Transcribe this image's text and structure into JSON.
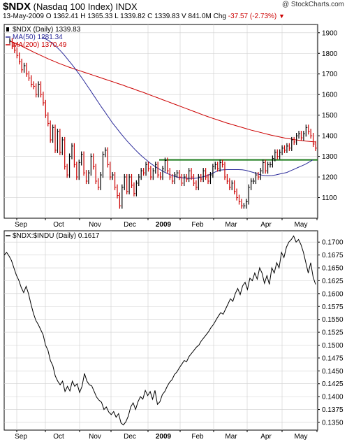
{
  "header": {
    "symbol": "$NDX",
    "name": "(Nasdaq 100 Index)",
    "exchange": "INDX",
    "credit": "@ StockCharts.com",
    "date": "13-May-2009",
    "open_label": "O",
    "open": "1362.41",
    "high_label": "H",
    "high": "1365.33",
    "low_label": "L",
    "low": "1339.82",
    "close_label": "C",
    "close": "1339.83",
    "volume_label": "V",
    "volume": "841.0M",
    "change_label": "Chg",
    "change": "-37.57 (-2.73%)",
    "change_color": "#cc0000"
  },
  "chart_data": [
    {
      "type": "line",
      "panel": "price",
      "legend": [
        {
          "label": "$NDX (Daily) 1339.83",
          "color": "#000000",
          "marker": "bar"
        },
        {
          "label": "MA(50) 1281.34",
          "color": "#2b2b9a"
        },
        {
          "label": "MA(200) 1370.49",
          "color": "#cc0000"
        }
      ],
      "yticks": [
        1100,
        1200,
        1300,
        1400,
        1500,
        1600,
        1700,
        1800,
        1900
      ],
      "xticks": [
        "Sep",
        "Oct",
        "Nov",
        "Dec",
        "2009",
        "Feb",
        "Mar",
        "Apr",
        "May"
      ],
      "ylim": [
        1000,
        1940
      ],
      "up_color": "#000000",
      "down_color": "#cc0000",
      "support_level": 1283,
      "support_color": "#1a7a1a",
      "price": [
        1860,
        1835,
        1815,
        1790,
        1760,
        1720,
        1740,
        1700,
        1680,
        1650,
        1640,
        1600,
        1650,
        1600,
        1560,
        1500,
        1460,
        1380,
        1440,
        1330,
        1420,
        1320,
        1380,
        1250,
        1210,
        1300,
        1350,
        1260,
        1200,
        1270,
        1310,
        1220,
        1180,
        1220,
        1300,
        1250,
        1180,
        1150,
        1210,
        1310,
        1330,
        1260,
        1200,
        1210,
        1150,
        1110,
        1060,
        1150,
        1200,
        1130,
        1200,
        1160,
        1120,
        1170,
        1200,
        1230,
        1220,
        1260,
        1240,
        1200,
        1230,
        1260,
        1210,
        1200,
        1240,
        1280,
        1230,
        1200,
        1180,
        1210,
        1220,
        1200,
        1170,
        1200,
        1190,
        1230,
        1200,
        1170,
        1150,
        1200,
        1190,
        1230,
        1200,
        1180,
        1210,
        1250,
        1260,
        1240,
        1270,
        1260,
        1200,
        1180,
        1150,
        1170,
        1130,
        1100,
        1080,
        1060,
        1060,
        1080,
        1150,
        1180,
        1180,
        1210,
        1200,
        1230,
        1270,
        1230,
        1260,
        1260,
        1290,
        1320,
        1300,
        1320,
        1340,
        1330,
        1350,
        1340,
        1380,
        1370,
        1400,
        1410,
        1390,
        1410,
        1440,
        1420,
        1400,
        1360,
        1340
      ],
      "ma50": [
        1880,
        1870,
        1860,
        1845,
        1830,
        1812,
        1792,
        1770,
        1748,
        1725,
        1700,
        1675,
        1648,
        1622,
        1595,
        1568,
        1541,
        1515,
        1489,
        1463,
        1440,
        1417,
        1395,
        1374,
        1354,
        1335,
        1317,
        1300,
        1285,
        1270,
        1257,
        1245,
        1234,
        1224,
        1215,
        1208,
        1202,
        1198,
        1196,
        1194,
        1193,
        1193,
        1195,
        1199,
        1204,
        1210,
        1218,
        1227,
        1233,
        1235,
        1236,
        1236,
        1236,
        1236,
        1235,
        1232,
        1227,
        1222,
        1216,
        1210,
        1207,
        1206,
        1207,
        1210,
        1214,
        1218,
        1222,
        1230,
        1238,
        1246,
        1254,
        1262,
        1272,
        1283
      ],
      "ma200": [
        1860,
        1850,
        1840,
        1828,
        1816,
        1804,
        1793,
        1782,
        1771,
        1761,
        1751,
        1742,
        1733,
        1725,
        1717,
        1709,
        1701,
        1693,
        1685,
        1677,
        1669,
        1661,
        1653,
        1645,
        1636,
        1628,
        1619,
        1611,
        1602,
        1593,
        1584,
        1575,
        1566,
        1557,
        1548,
        1539,
        1530,
        1521,
        1512,
        1503,
        1494,
        1486,
        1478,
        1470,
        1462,
        1455,
        1448,
        1441,
        1434,
        1427,
        1421,
        1415,
        1409,
        1403,
        1398,
        1393,
        1388,
        1384,
        1380,
        1377,
        1374,
        1372,
        1370
      ]
    },
    {
      "type": "line",
      "panel": "ratio",
      "legend": [
        {
          "label": "$NDX:$INDU (Daily) 0.1617",
          "color": "#000000"
        }
      ],
      "yticks": [
        0.135,
        0.1375,
        0.14,
        0.1425,
        0.145,
        0.1475,
        0.15,
        0.1525,
        0.155,
        0.1575,
        0.16,
        0.1625,
        0.165,
        0.1675,
        0.17
      ],
      "ytick_labels": [
        "0.1350",
        "0.1375",
        "0.1400",
        "0.1425",
        "0.1450",
        "0.1475",
        "0.1500",
        "0.1525",
        "0.1550",
        "0.1575",
        "0.1600",
        "0.1625",
        "0.1650",
        "0.1675",
        "0.1700"
      ],
      "xticks": [
        "Sep",
        "Oct",
        "Nov",
        "Dec",
        "2009",
        "Feb",
        "Mar",
        "Apr",
        "May"
      ],
      "ylim": [
        0.1335,
        0.1722
      ],
      "values": [
        0.1675,
        0.168,
        0.1673,
        0.1664,
        0.165,
        0.1636,
        0.1626,
        0.1612,
        0.1602,
        0.1614,
        0.16,
        0.158,
        0.1562,
        0.1548,
        0.154,
        0.153,
        0.152,
        0.15,
        0.149,
        0.147,
        0.146,
        0.144,
        0.143,
        0.1423,
        0.143,
        0.141,
        0.142,
        0.1411,
        0.143,
        0.142,
        0.1425,
        0.1408,
        0.142,
        0.1445,
        0.143,
        0.1423,
        0.1421,
        0.141,
        0.1399,
        0.1393,
        0.1389,
        0.1375,
        0.138,
        0.137,
        0.1365,
        0.1371,
        0.136,
        0.1367,
        0.1349,
        0.1345,
        0.1351,
        0.1362,
        0.138,
        0.1388,
        0.1375,
        0.139,
        0.14,
        0.1395,
        0.1412,
        0.1402,
        0.141,
        0.1395,
        0.1412,
        0.1385,
        0.139,
        0.1404,
        0.141,
        0.142,
        0.1428,
        0.1433,
        0.1443,
        0.1448,
        0.1456,
        0.1463,
        0.147,
        0.1468,
        0.1478,
        0.1484,
        0.149,
        0.1496,
        0.15,
        0.1508,
        0.1514,
        0.152,
        0.1526,
        0.1534,
        0.154,
        0.1548,
        0.1556,
        0.1563,
        0.156,
        0.157,
        0.158,
        0.159,
        0.1585,
        0.16,
        0.161,
        0.1598,
        0.1615,
        0.1622,
        0.1608,
        0.163,
        0.1625,
        0.164,
        0.1628,
        0.165,
        0.164,
        0.162,
        0.1635,
        0.1618,
        0.165,
        0.164,
        0.166,
        0.165,
        0.168,
        0.167,
        0.169,
        0.17,
        0.1705,
        0.1712,
        0.17,
        0.1705,
        0.1695,
        0.168,
        0.166,
        0.164,
        0.166,
        0.1632,
        0.1618
      ],
      "line_color": "#000000"
    }
  ]
}
